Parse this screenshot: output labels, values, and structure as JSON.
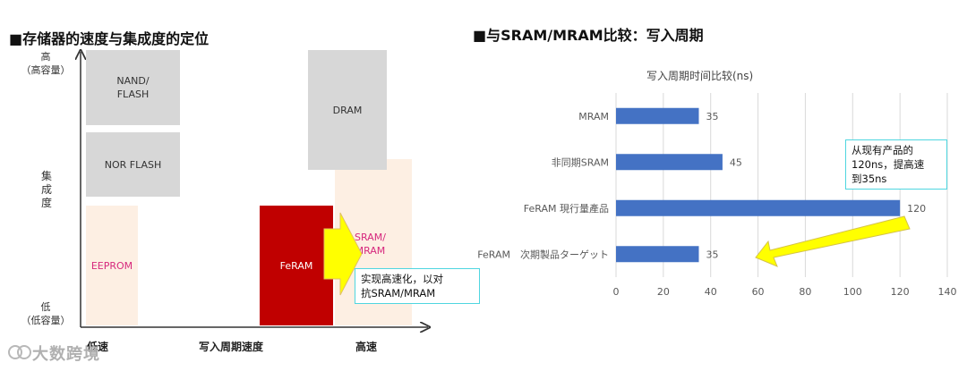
{
  "left": {
    "title": "■存储器的速度与集成度的定位",
    "y_top": "高\n（高容量）",
    "y_mid": "集\n成\n度",
    "y_bottom": "低\n（低容量）",
    "x_left": "低速",
    "x_mid": "写入周期速度",
    "x_right": "高速",
    "boxes": {
      "nand": "NAND/\nFLASH",
      "nor": "NOR FLASH",
      "eeprom": "EEPROM",
      "dram": "DRAM",
      "sram": "SRAM/\nMRAM",
      "feram": "FeRAM"
    },
    "callout": "实现高速化，以对\n抗SRAM/MRAM",
    "colors": {
      "gray": "#d7d7d7",
      "peach": "#fdefe3",
      "feram": "#c00000",
      "arrow": "#ffff00"
    }
  },
  "right": {
    "title": "■与SRAM/MRAM比较：写入周期",
    "callout": "从现有产品的\n120ns，提高速\n到35ns"
  },
  "chart_data": {
    "type": "bar",
    "orientation": "horizontal",
    "title": "写入周期时间比较(ns)",
    "categories": [
      "MRAM",
      "非同期SRAM",
      "FeRAM 現行量產品",
      "FeRAM　次期製品ターゲット"
    ],
    "values": [
      35,
      45,
      120,
      35
    ],
    "xlim": [
      0,
      140
    ],
    "xticks": [
      0,
      20,
      40,
      60,
      80,
      100,
      120,
      140
    ],
    "grid": true,
    "bar_color": "#4472c4"
  },
  "watermark": "大数跨境"
}
